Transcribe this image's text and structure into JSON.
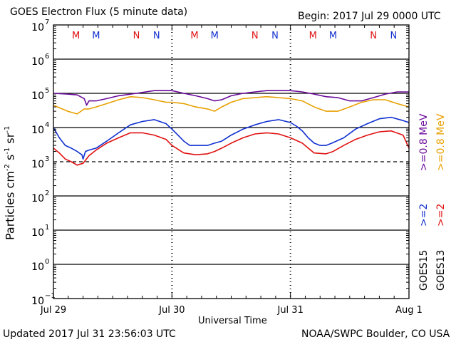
{
  "header": {
    "title": "GOES Electron Flux (5 minute data)",
    "begin": "Begin: 2017 Jul 29 0000 UTC"
  },
  "footer": {
    "updated": "Updated 2017 Jul 31 23:56:03 UTC",
    "credit": "NOAA/SWPC Boulder, CO USA"
  },
  "colors": {
    "goes15_gt2": "#1030d0",
    "goes13_gt2": "#e01010",
    "goes15_gt08": "#6a0a9a",
    "goes13_gt08": "#e8a000",
    "axis": "#000000"
  },
  "chart_data": {
    "type": "line",
    "title": "GOES Electron Flux (5 minute data)",
    "xlabel": "Universal Time",
    "ylabel_parts": [
      "Particles cm",
      "-2",
      "s",
      "-1",
      "sr",
      "-1"
    ],
    "yscale": "log",
    "ylim_exp": [
      -1,
      7
    ],
    "ytick_exponents": [
      7,
      6,
      5,
      4,
      3,
      2,
      1,
      0,
      -1
    ],
    "xlim_days": [
      0,
      3
    ],
    "xticks": [
      {
        "day": 0,
        "label": "Jul 29"
      },
      {
        "day": 1,
        "label": "Jul 30"
      },
      {
        "day": 2,
        "label": "Jul 31"
      },
      {
        "day": 3,
        "label": "Aug 1"
      }
    ],
    "threshold": {
      "value": 1000,
      "style": "dashed"
    },
    "markers": [
      {
        "label": "M",
        "day": 0.19,
        "color": "#e01010"
      },
      {
        "label": "M",
        "day": 0.36,
        "color": "#1030d0"
      },
      {
        "label": "N",
        "day": 0.7,
        "color": "#e01010"
      },
      {
        "label": "N",
        "day": 0.87,
        "color": "#1030d0"
      },
      {
        "label": "M",
        "day": 1.19,
        "color": "#e01010"
      },
      {
        "label": "M",
        "day": 1.36,
        "color": "#1030d0"
      },
      {
        "label": "N",
        "day": 1.7,
        "color": "#e01010"
      },
      {
        "label": "N",
        "day": 1.87,
        "color": "#1030d0"
      },
      {
        "label": "M",
        "day": 2.19,
        "color": "#e01010"
      },
      {
        "label": "M",
        "day": 2.36,
        "color": "#1030d0"
      },
      {
        "label": "N",
        "day": 2.7,
        "color": "#e01010"
      },
      {
        "label": "N",
        "day": 2.87,
        "color": "#1030d0"
      }
    ],
    "legend": [
      {
        "text": ">=0.8  MeV",
        "color": "#e8a000"
      },
      {
        "text": ">=0.8  MeV",
        "color": "#6a0a9a"
      },
      {
        "text": ">=2",
        "color": "#e01010"
      },
      {
        "text": ">=2",
        "color": "#1030d0"
      },
      {
        "text": "GOES13",
        "color": "#000000"
      },
      {
        "text": "GOES15",
        "color": "#000000"
      }
    ],
    "series": [
      {
        "color": "#6a0a9a",
        "x": [
          0,
          0.12,
          0.2,
          0.26,
          0.28,
          0.3,
          0.36,
          0.45,
          0.55,
          0.7,
          0.85,
          1.0,
          1.1,
          1.2,
          1.3,
          1.36,
          1.42,
          1.5,
          1.6,
          1.7,
          1.8,
          1.9,
          2.0,
          2.1,
          2.2,
          2.3,
          2.4,
          2.5,
          2.6,
          2.7,
          2.8,
          2.9,
          3.0
        ],
        "y": [
          100000,
          95000,
          90000,
          70000,
          45000,
          60000,
          60000,
          70000,
          85000,
          100000,
          120000,
          120000,
          100000,
          85000,
          70000,
          60000,
          65000,
          85000,
          100000,
          110000,
          120000,
          120000,
          120000,
          110000,
          95000,
          80000,
          75000,
          60000,
          60000,
          75000,
          95000,
          110000,
          110000
        ]
      },
      {
        "color": "#e8a000",
        "x": [
          0,
          0.12,
          0.2,
          0.26,
          0.3,
          0.36,
          0.45,
          0.55,
          0.65,
          0.75,
          0.85,
          0.95,
          1.0,
          1.1,
          1.2,
          1.3,
          1.36,
          1.42,
          1.5,
          1.6,
          1.7,
          1.8,
          1.9,
          2.0,
          2.1,
          2.2,
          2.3,
          2.4,
          2.5,
          2.6,
          2.7,
          2.8,
          2.9,
          3.0
        ],
        "y": [
          45000,
          30000,
          25000,
          35000,
          35000,
          40000,
          50000,
          65000,
          80000,
          75000,
          65000,
          55000,
          55000,
          50000,
          40000,
          35000,
          30000,
          40000,
          55000,
          70000,
          75000,
          80000,
          75000,
          70000,
          60000,
          40000,
          30000,
          30000,
          40000,
          55000,
          65000,
          65000,
          50000,
          40000
        ]
      },
      {
        "color": "#1030d0",
        "x": [
          0,
          0.05,
          0.1,
          0.15,
          0.2,
          0.24,
          0.25,
          0.27,
          0.3,
          0.36,
          0.45,
          0.55,
          0.65,
          0.75,
          0.85,
          0.95,
          1.0,
          1.05,
          1.1,
          1.15,
          1.2,
          1.3,
          1.36,
          1.42,
          1.5,
          1.6,
          1.7,
          1.8,
          1.9,
          2.0,
          2.05,
          2.1,
          2.15,
          2.2,
          2.25,
          2.3,
          2.35,
          2.45,
          2.55,
          2.65,
          2.75,
          2.85,
          2.95,
          3.0
        ],
        "y": [
          10000,
          5000,
          3000,
          2500,
          2000,
          1600,
          1200,
          2000,
          2200,
          2500,
          4000,
          7000,
          12000,
          15000,
          17000,
          13000,
          9000,
          6000,
          4000,
          3000,
          3000,
          3000,
          3500,
          4000,
          6000,
          9000,
          12000,
          15000,
          17000,
          14000,
          11000,
          8000,
          5000,
          3500,
          3000,
          3000,
          3500,
          5000,
          9000,
          13000,
          18000,
          20000,
          16000,
          14000
        ]
      },
      {
        "color": "#e01010",
        "x": [
          0,
          0.05,
          0.1,
          0.15,
          0.2,
          0.25,
          0.3,
          0.36,
          0.45,
          0.55,
          0.65,
          0.75,
          0.85,
          0.95,
          1.0,
          1.1,
          1.2,
          1.3,
          1.36,
          1.42,
          1.5,
          1.6,
          1.7,
          1.8,
          1.9,
          2.0,
          2.1,
          2.15,
          2.2,
          2.3,
          2.36,
          2.45,
          2.55,
          2.65,
          2.75,
          2.85,
          2.95,
          3.0
        ],
        "y": [
          2500,
          1800,
          1200,
          1000,
          800,
          900,
          1500,
          2200,
          3500,
          5000,
          7000,
          7000,
          6000,
          4500,
          3000,
          1800,
          1600,
          1700,
          2000,
          2500,
          3500,
          5000,
          6500,
          7000,
          6500,
          5000,
          3500,
          2500,
          1800,
          1700,
          2000,
          3000,
          4500,
          6000,
          7500,
          8000,
          6000,
          2500
        ]
      }
    ]
  }
}
